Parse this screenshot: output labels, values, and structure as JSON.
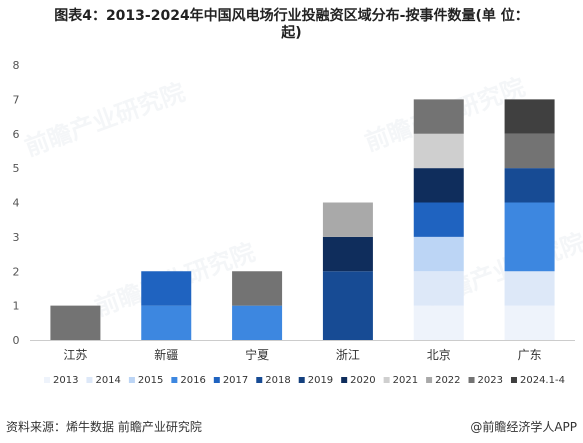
{
  "title": {
    "line1": "图表4：2013-2024年中国风电场行业投融资区域分布-按事件数量(单 位：",
    "line2": "起)"
  },
  "footer": {
    "source": "资料来源：烯牛数据 前瞻产业研究院",
    "brand": "@前瞻经济学人APP"
  },
  "watermark": "前瞻产业研究院",
  "chart_data": {
    "type": "bar",
    "stacked": true,
    "categories": [
      "江苏",
      "新疆",
      "宁夏",
      "浙江",
      "北京",
      "广东"
    ],
    "ylim": [
      0,
      8
    ],
    "yticks": [
      0,
      1,
      2,
      3,
      4,
      5,
      6,
      7,
      8
    ],
    "grid": false,
    "legend_position": "bottom",
    "series": [
      {
        "name": "2013",
        "color": "#eef3fb",
        "values": [
          0,
          0,
          0,
          0,
          1,
          1
        ]
      },
      {
        "name": "2014",
        "color": "#dde8f8",
        "values": [
          0,
          0,
          0,
          0,
          1,
          1
        ]
      },
      {
        "name": "2015",
        "color": "#bcd5f5",
        "values": [
          0,
          0,
          0,
          0,
          1,
          0
        ]
      },
      {
        "name": "2016",
        "color": "#3d87e0",
        "values": [
          0,
          1,
          1,
          0,
          0,
          2
        ]
      },
      {
        "name": "2017",
        "color": "#1f63c0",
        "values": [
          0,
          1,
          0,
          0,
          1,
          0
        ]
      },
      {
        "name": "2018",
        "color": "#174b94",
        "values": [
          0,
          0,
          0,
          2,
          0,
          1
        ]
      },
      {
        "name": "2019",
        "color": "#14407e",
        "values": [
          0,
          0,
          0,
          0,
          0,
          0
        ]
      },
      {
        "name": "2020",
        "color": "#0f2d5c",
        "values": [
          0,
          0,
          0,
          1,
          1,
          0
        ]
      },
      {
        "name": "2021",
        "color": "#cfcfcf",
        "values": [
          0,
          0,
          0,
          0,
          1,
          0
        ]
      },
      {
        "name": "2022",
        "color": "#a9a9a9",
        "values": [
          0,
          0,
          0,
          1,
          0,
          0
        ]
      },
      {
        "name": "2023",
        "color": "#737373",
        "values": [
          1,
          0,
          1,
          0,
          1,
          1
        ]
      },
      {
        "name": "2024.1-4",
        "color": "#404040",
        "values": [
          0,
          0,
          0,
          0,
          0,
          1
        ]
      }
    ]
  }
}
